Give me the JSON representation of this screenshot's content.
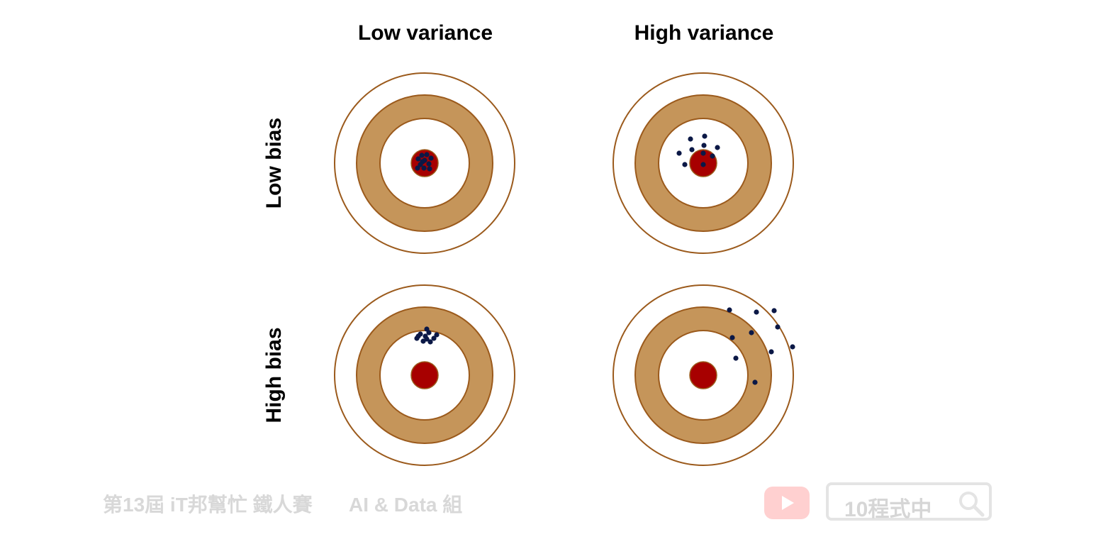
{
  "columns": [
    "Low variance",
    "High variance"
  ],
  "rows": [
    "Low bias",
    "High bias"
  ],
  "colors": {
    "ring": "#c5955a",
    "ring_stroke": "#9b5a1c",
    "bullseye": "#a70000",
    "shot": "#0b1846",
    "watermark": "#d8d8d8",
    "youtube": "#ffd0d0"
  },
  "panels": [
    {
      "name": "low-bias-low-variance",
      "shots": [
        [
          -4,
          -11
        ],
        [
          3,
          -12
        ],
        [
          9,
          -7
        ],
        [
          -9,
          -6
        ],
        [
          0,
          -4
        ],
        [
          -6,
          2
        ],
        [
          6,
          1
        ],
        [
          -10,
          7
        ],
        [
          -1,
          7
        ],
        [
          7,
          8
        ],
        [
          -3,
          -2
        ]
      ]
    },
    {
      "name": "high-variance-low-bias",
      "shots": [
        [
          -18,
          -34
        ],
        [
          2,
          -38
        ],
        [
          -34,
          -14
        ],
        [
          -16,
          -19
        ],
        [
          1,
          -25
        ],
        [
          20,
          -22
        ],
        [
          -26,
          2
        ],
        [
          0,
          -14
        ],
        [
          13,
          -10
        ],
        [
          0,
          2
        ]
      ]
    },
    {
      "name": "high-bias-low-variance",
      "shots": [
        [
          3,
          -65
        ],
        [
          -6,
          -58
        ],
        [
          6,
          -60
        ],
        [
          17,
          -57
        ],
        [
          -11,
          -52
        ],
        [
          1,
          -55
        ],
        [
          13,
          -52
        ],
        [
          -2,
          -48
        ],
        [
          8,
          -47
        ],
        [
          -9,
          -55
        ],
        [
          3,
          -51
        ]
      ]
    },
    {
      "name": "high-bias-high-variance",
      "shots": [
        [
          37,
          -92
        ],
        [
          75,
          -89
        ],
        [
          100,
          -91
        ],
        [
          105,
          -68
        ],
        [
          41,
          -53
        ],
        [
          68,
          -60
        ],
        [
          126,
          -40
        ],
        [
          96,
          -33
        ],
        [
          46,
          -24
        ],
        [
          73,
          10
        ]
      ]
    }
  ],
  "watermark": {
    "contest": "第13屆 iT邦幫忙 鐵人賽",
    "group": "AI & Data 組",
    "search_text": "10程式中"
  }
}
